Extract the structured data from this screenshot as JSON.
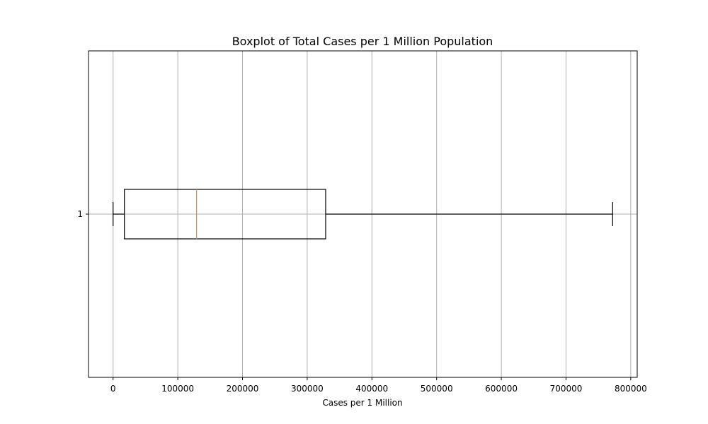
{
  "chart_data": {
    "type": "boxplot",
    "orientation": "horizontal",
    "title": "Boxplot of Total Cases per 1 Million Population",
    "xlabel": "Cases per 1 Million",
    "ylabel": "",
    "xlim": [
      -38000,
      810000
    ],
    "xticks": [
      0,
      100000,
      200000,
      300000,
      400000,
      500000,
      600000,
      700000,
      800000
    ],
    "xtick_labels": [
      "0",
      "100000",
      "200000",
      "300000",
      "400000",
      "500000",
      "600000",
      "700000",
      "800000"
    ],
    "ytick_labels": [
      "1"
    ],
    "grid": true,
    "series": [
      {
        "category": "1",
        "whisker_low": 0,
        "q1": 17500,
        "median": 129000,
        "q3": 328500,
        "whisker_high": 772000
      }
    ],
    "colors": {
      "box": "#000000",
      "median": "#ff7f0e",
      "grid": "#b0b0b0"
    }
  }
}
